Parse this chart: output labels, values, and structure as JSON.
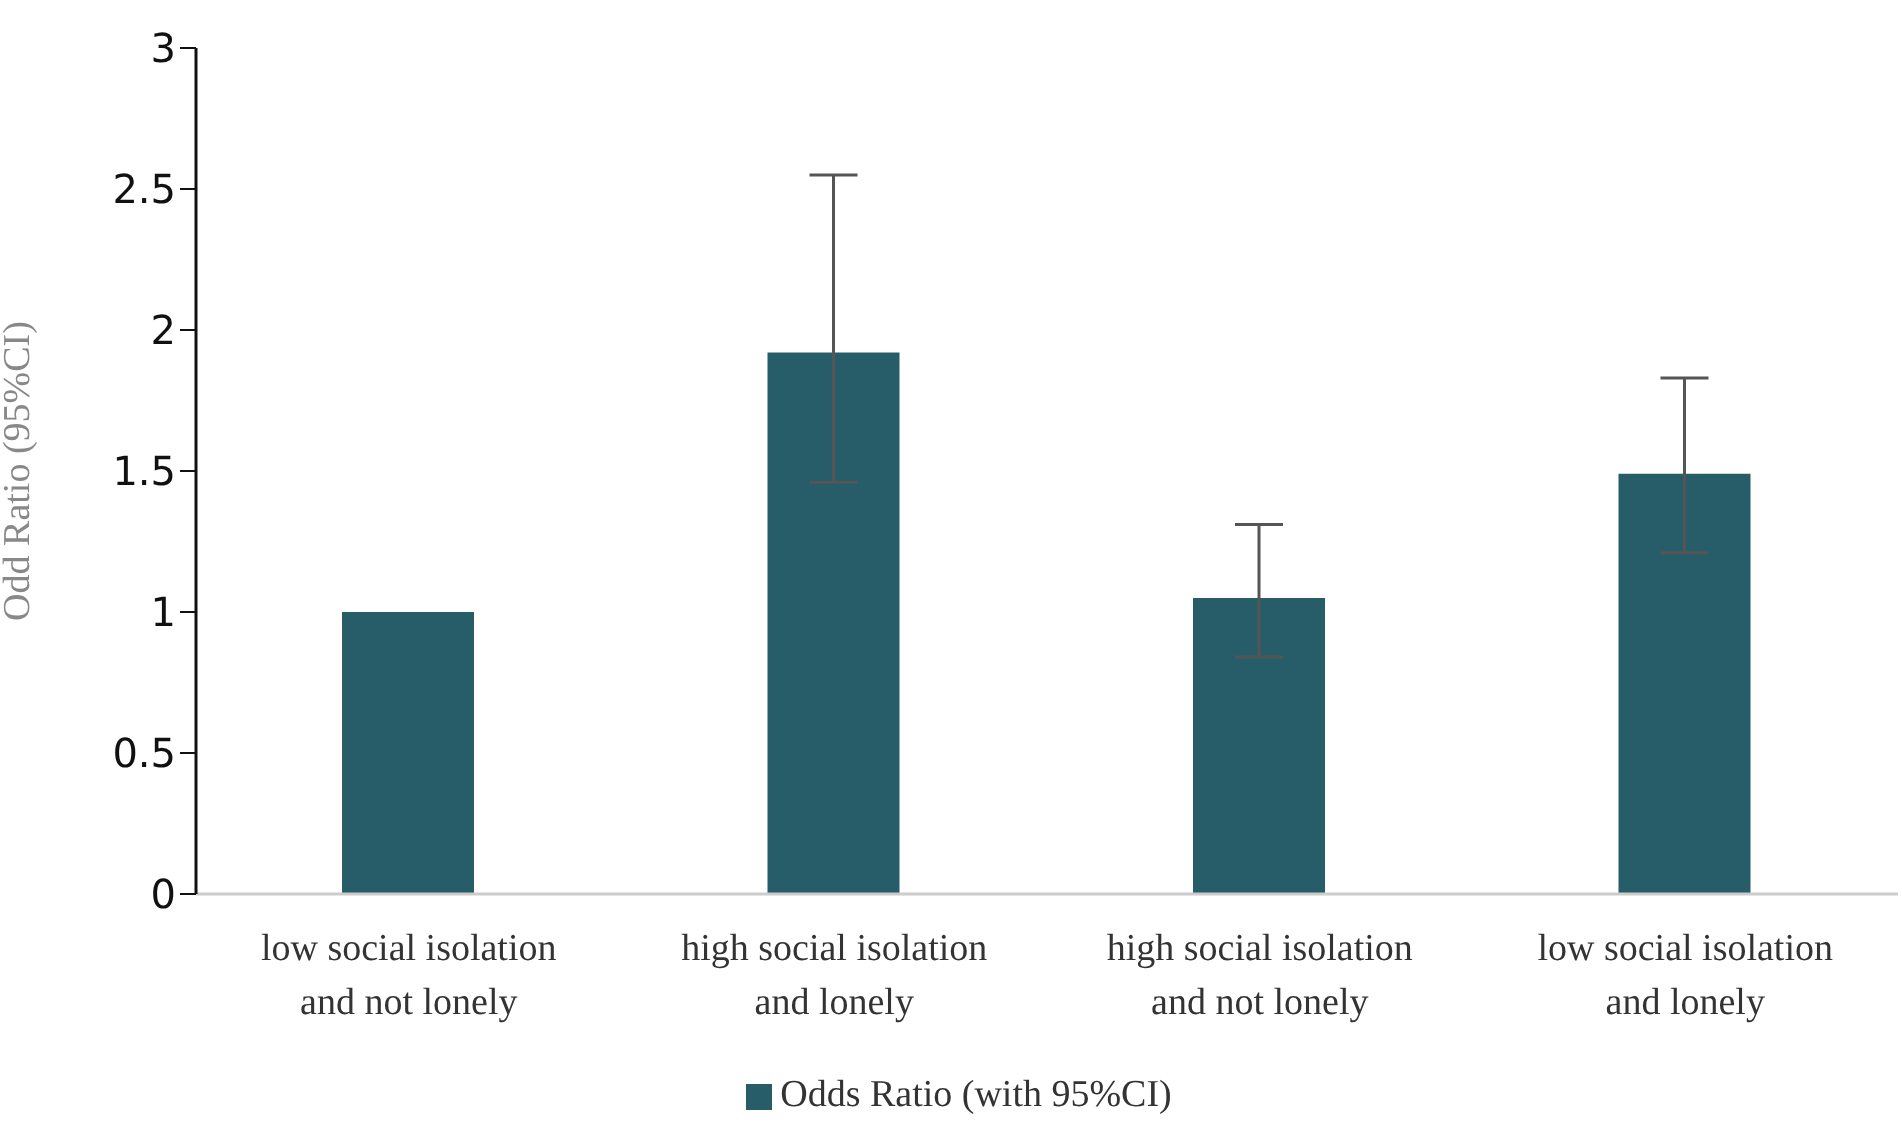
{
  "chart_data": {
    "type": "bar",
    "ylabel": "Odd Ratio (95%CI)",
    "categories": [
      "low social isolation and not lonely",
      "high social isolation and lonely",
      "high social isolation and not lonely",
      "low social isolation and lonely"
    ],
    "series": [
      {
        "name": "Odds Ratio (with 95%CI)",
        "color": "#275d69",
        "values": [
          1,
          1.92,
          1.05,
          1.49
        ],
        "errors": [
          null,
          [
            1.46,
            2.55
          ],
          [
            0.84,
            1.31
          ],
          [
            1.21,
            1.83
          ]
        ]
      }
    ],
    "ylim": [
      0,
      3
    ],
    "yticks": [
      0,
      0.5,
      1,
      1.5,
      2,
      2.5,
      3
    ],
    "grid": false,
    "legend": "bottom"
  }
}
